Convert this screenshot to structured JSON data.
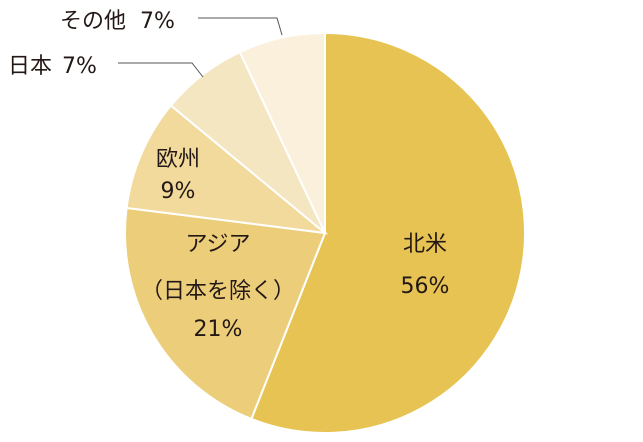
{
  "chart_data": {
    "type": "pie",
    "categories": [
      "北米",
      "アジア（日本を除く）",
      "欧州",
      "日本",
      "その他"
    ],
    "values": [
      56,
      21,
      9,
      7,
      7
    ],
    "value_labels": [
      "56%",
      "21%",
      "9%",
      "7%",
      "7%"
    ],
    "colors": [
      "#e6c352",
      "#ecce7a",
      "#f2da9c",
      "#f5e6c2",
      "#faf0db"
    ]
  }
}
